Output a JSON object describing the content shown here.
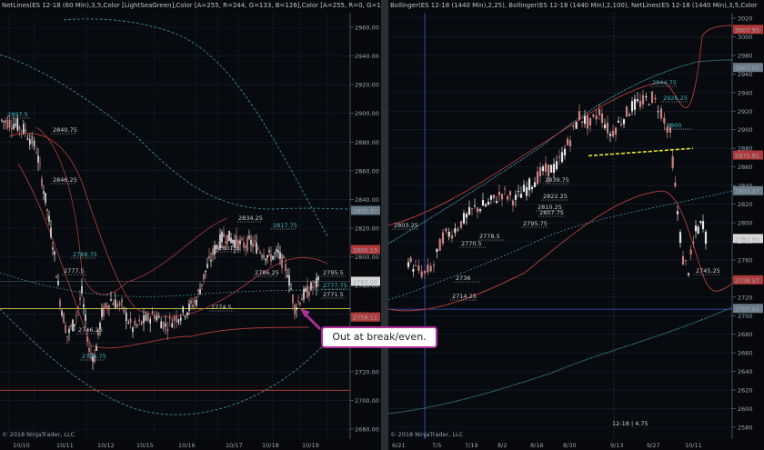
{
  "left_chart": {
    "header": "NetLines(ES 12-18 (60 Min),3,5,Color [LightSeaGreen],Color [A=255, R=244, G=133, B=126],Color [A=255, R=0, G=131,",
    "footer": "© 2018 NinjaTrader, LLC",
    "y_ticks": [
      "2960.00",
      "2940.00",
      "2920.00",
      "2900.00",
      "2880.00",
      "2860.00",
      "2840.00",
      "2820.00",
      "2800.00",
      "2780.00",
      "2760.00",
      "2740.00",
      "2720.00",
      "2700.00",
      "2680.00"
    ],
    "x_ticks": [
      "10/10",
      "10/11",
      "10/12",
      "10/15",
      "10/16",
      "10/17",
      "10/18",
      "10/19"
    ],
    "price_tags": [
      {
        "text": "2832.37",
        "color": "#6a7a86"
      },
      {
        "text": "2805.13",
        "color": "#b03a3a"
      },
      {
        "text": "2783.00",
        "color": "#d8d8d8"
      },
      {
        "text": "2758.11",
        "color": "#b03a3a"
      }
    ],
    "level_labels": [
      "2897.5",
      "2840.75",
      "2846.25",
      "2788.75",
      "2777.5",
      "2746.25",
      "2726.75",
      "2774.5",
      "2795.5",
      "2777.75",
      "2771.5",
      "2834.25",
      "2817.75",
      "2801.5",
      "2786.25"
    ]
  },
  "right_chart": {
    "header": "Bollinger(ES 12-18 (1440 Min),2,25), Bollinger(ES 12-18 (1440 Min),2,100), NetLines(ES 12-18 (1440 Min),3,5,Color",
    "footer": "© 2018 NinjaTrader, LLC",
    "y_ticks": [
      "3020.00",
      "3000.00",
      "2980.00",
      "2960.00",
      "2940.00",
      "2920.00",
      "2900.00",
      "2880.00",
      "2860.00",
      "2840.00",
      "2820.00",
      "2800.00",
      "2780.00",
      "2760.00",
      "2740.00",
      "2720.00",
      "2700.00",
      "2680.00",
      "2660.00",
      "2640.00",
      "2620.00",
      "2600.00",
      "2580.00"
    ],
    "x_ticks": [
      "6/21",
      "7/5",
      "7/19",
      "8/2",
      "8/16",
      "8/30",
      "9/13",
      "9/27",
      "10/11"
    ],
    "price_tags": [
      {
        "text": "3007.95",
        "color": "#b03a3a"
      },
      {
        "text": "2967.03",
        "color": "#6a7a86"
      },
      {
        "text": "2872.81",
        "color": "#b03a3a"
      },
      {
        "text": "2834.47",
        "color": "#6a7a86"
      },
      {
        "text": "2783.00",
        "color": "#d8d8d8"
      },
      {
        "text": "2738.57",
        "color": "#b03a3a"
      },
      {
        "text": "2707.84",
        "color": "#6a7a86"
      }
    ],
    "level_labels": [
      "2944.75",
      "2926.25",
      "2900",
      "2745.25",
      "2839.75",
      "2822.25",
      "2810.25",
      "2807.75",
      "2795.75",
      "2778.5",
      "2770.5",
      "2736",
      "2714.25",
      "2803.25"
    ],
    "crosshair_label": "12-18 | 4.75"
  },
  "callout": {
    "text": "Out at break/even."
  },
  "colors": {
    "bull": "#e8e8e8",
    "bear": "#c88282",
    "band_red": "#a83a3a",
    "band_teal": "#3d8a9a",
    "yellow": "#e6e62a",
    "callout_border": "#b0309a"
  }
}
